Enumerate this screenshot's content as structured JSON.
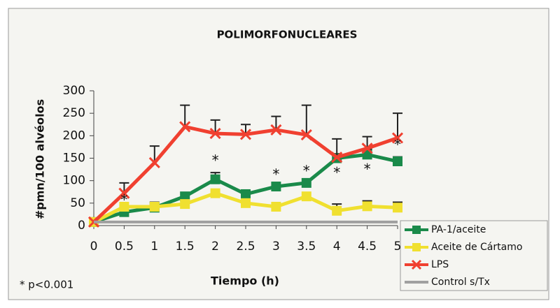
{
  "chart_data": {
    "type": "line",
    "title": "POLIMORFONUCLEARES",
    "xlabel": "Tiempo (h)",
    "ylabel": "#pmn/100 alvéolos",
    "footnote": "* p<0.001",
    "x": [
      0,
      0.5,
      1,
      1.5,
      2,
      2.5,
      3,
      3.5,
      4,
      4.5,
      5
    ],
    "xlim": [
      0,
      5
    ],
    "xticks": [
      0,
      0.5,
      1,
      1.5,
      2,
      2.5,
      3,
      3.5,
      4,
      4.5,
      5
    ],
    "ylim": [
      0,
      300
    ],
    "yticks": [
      0,
      50,
      100,
      150,
      200,
      250,
      300
    ],
    "legend": "lower right",
    "series": [
      {
        "name": "PA-1/aceite",
        "color": "#1a8a4a",
        "marker": "square",
        "values": [
          8,
          30,
          40,
          65,
          103,
          70,
          87,
          95,
          150,
          158,
          143
        ],
        "errors": [
          null,
          null,
          null,
          null,
          15,
          null,
          null,
          null,
          10,
          12,
          10
        ]
      },
      {
        "name": "Aceite de Cártamo",
        "color": "#f0e030",
        "marker": "square",
        "values": [
          8,
          42,
          42,
          48,
          72,
          50,
          42,
          65,
          33,
          43,
          40
        ],
        "errors": [
          null,
          null,
          10,
          null,
          null,
          null,
          null,
          null,
          15,
          12,
          12
        ]
      },
      {
        "name": "LPS",
        "color": "#f04030",
        "marker": "x",
        "values": [
          8,
          72,
          140,
          220,
          205,
          203,
          213,
          202,
          152,
          172,
          195
        ],
        "errors": [
          null,
          23,
          37,
          48,
          30,
          22,
          30,
          66,
          41,
          26,
          55
        ]
      },
      {
        "name": "Control s/Tx",
        "color": "#a0a0a0",
        "marker": "none",
        "values": [
          8,
          8,
          8,
          8,
          8,
          8,
          8,
          8,
          8,
          8,
          8
        ],
        "errors": [
          null,
          null,
          null,
          null,
          null,
          null,
          null,
          null,
          null,
          null,
          null
        ]
      }
    ],
    "annotations": [
      {
        "x": 0.5,
        "label": "*"
      },
      {
        "x": 2,
        "label": "*"
      },
      {
        "x": 3,
        "label": "*"
      },
      {
        "x": 3.5,
        "label": "*"
      },
      {
        "x": 4,
        "label": "*"
      },
      {
        "x": 4.5,
        "label": "*"
      },
      {
        "x": 5,
        "label": "*"
      }
    ]
  }
}
